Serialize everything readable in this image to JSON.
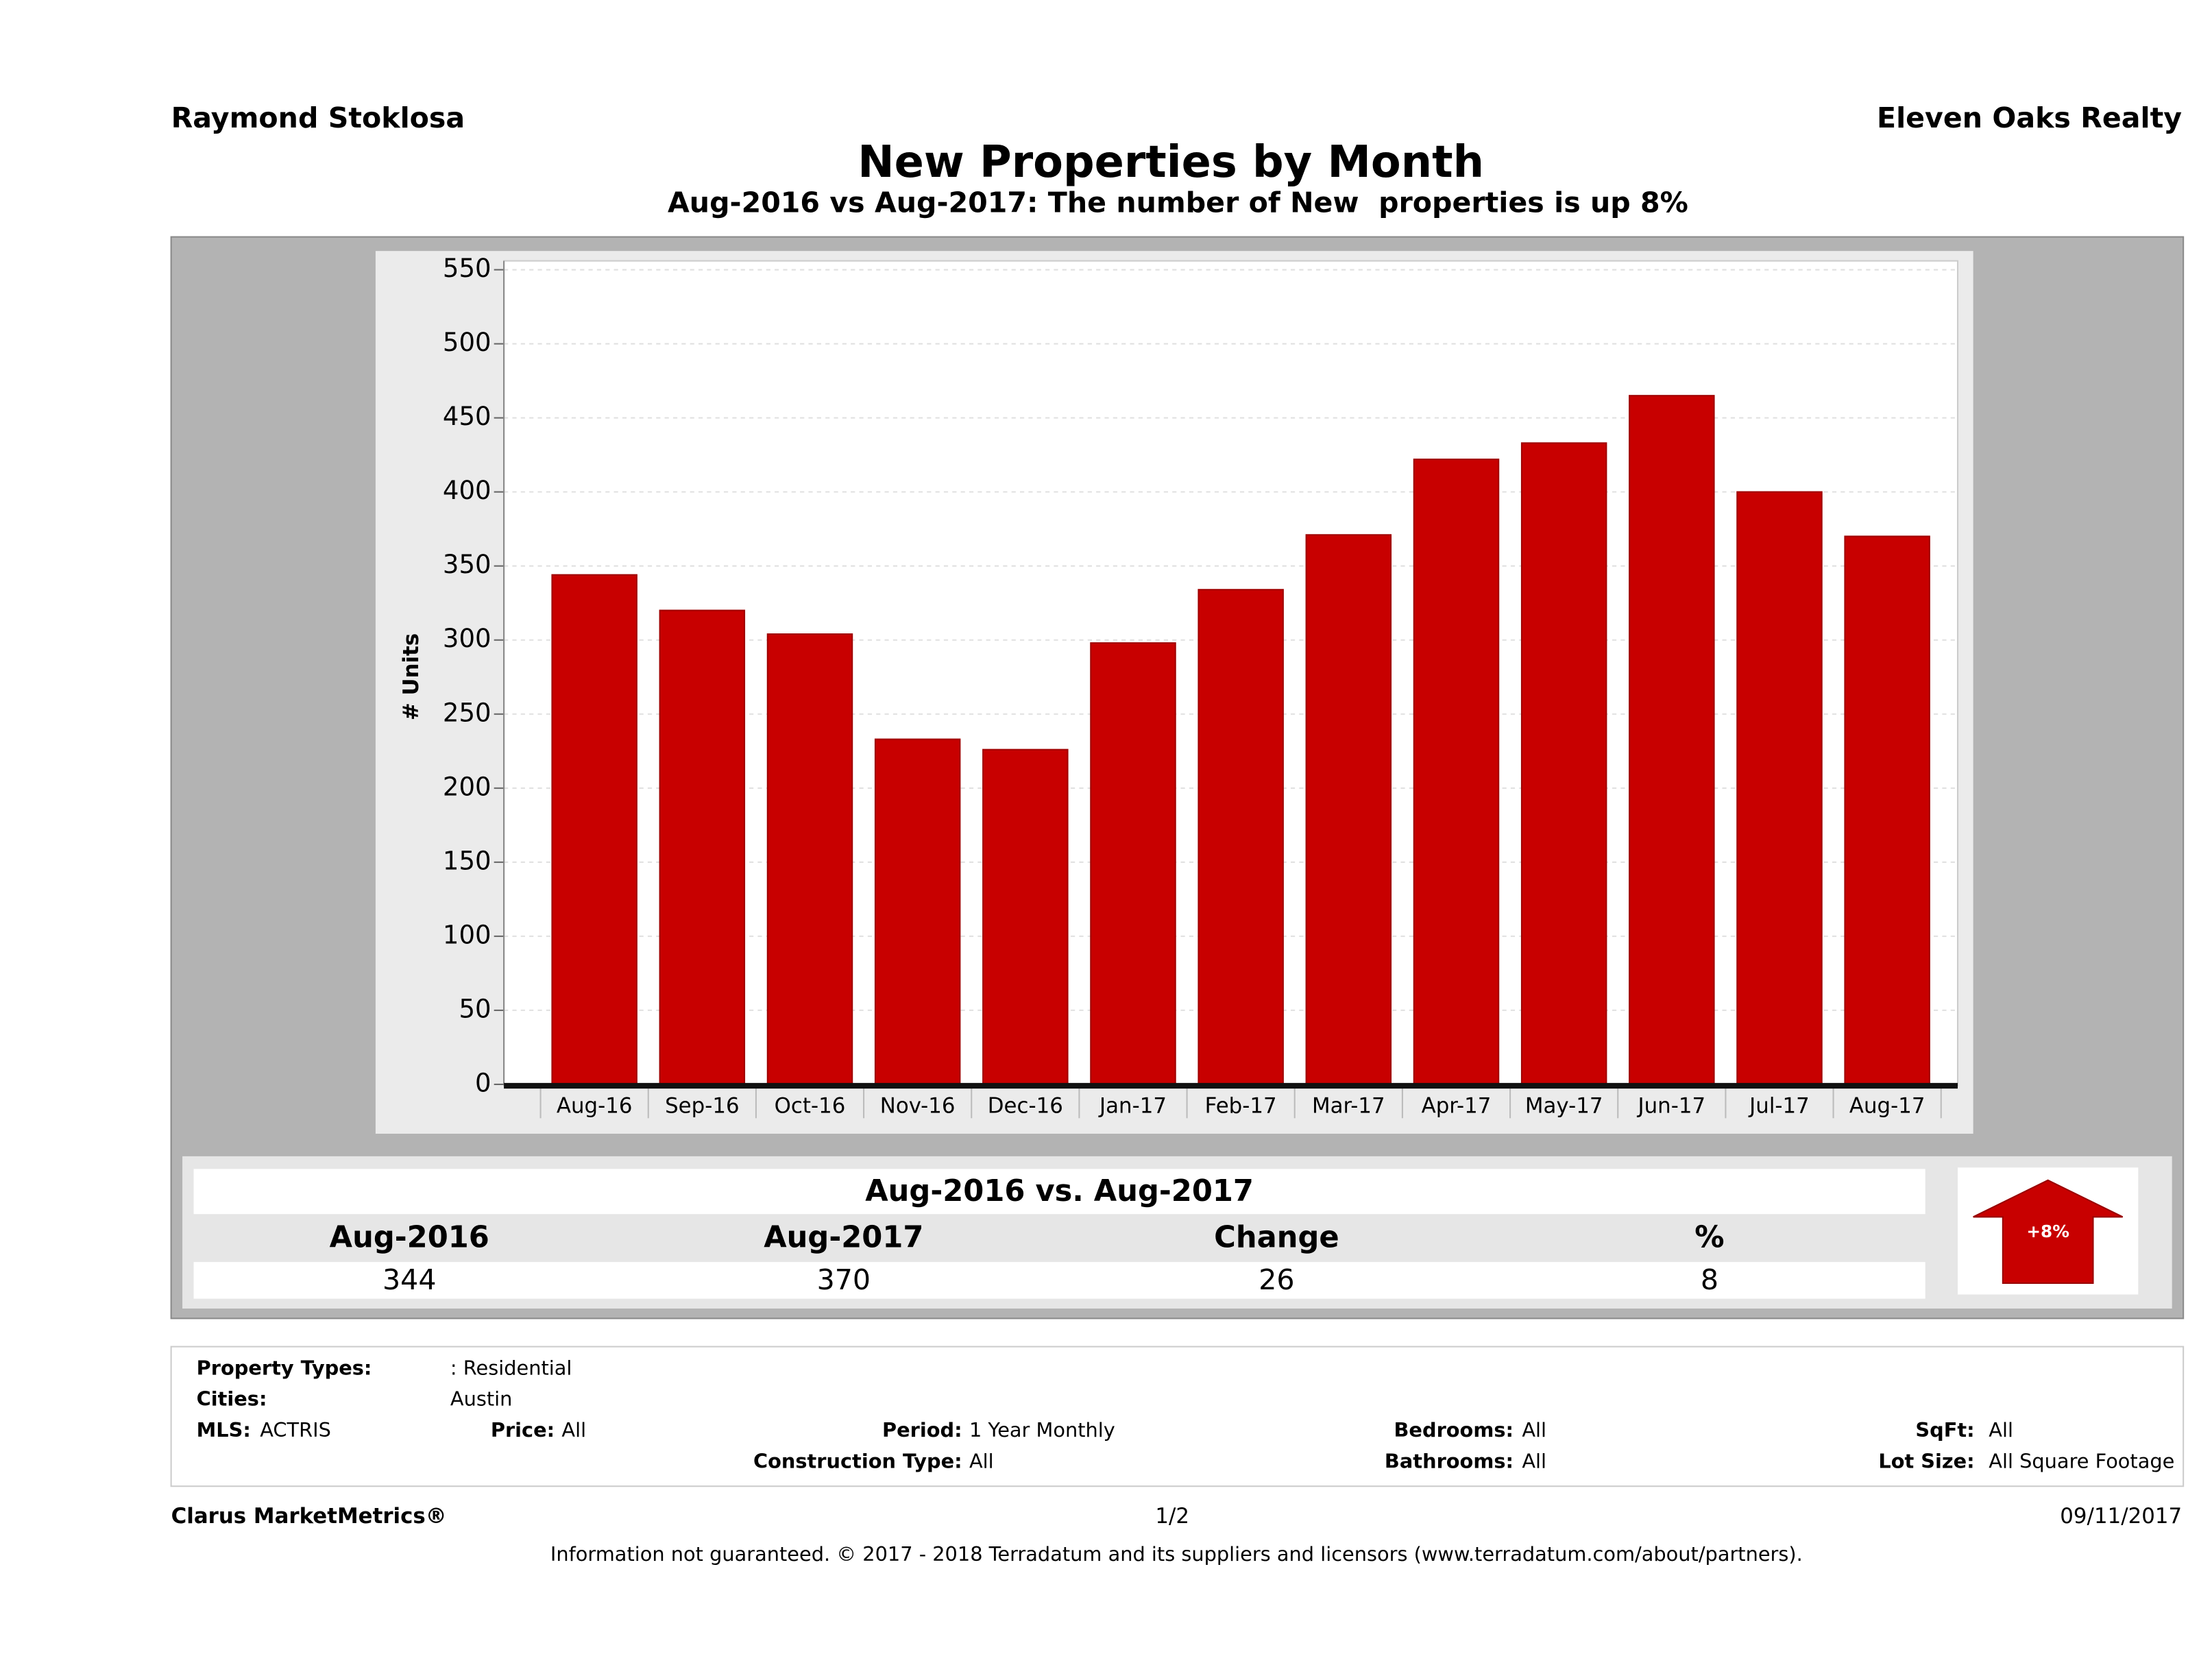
{
  "header": {
    "agent": "Raymond Stoklosa",
    "company": "Eleven Oaks Realty"
  },
  "chart_data": {
    "type": "bar",
    "title": "New Properties by Month",
    "subtitle": "Aug-2016 vs Aug-2017: The number of New  properties is up 8%",
    "y_label": "# Units",
    "categories": [
      "Aug-16",
      "Sep-16",
      "Oct-16",
      "Nov-16",
      "Dec-16",
      "Jan-17",
      "Feb-17",
      "Mar-17",
      "Apr-17",
      "May-17",
      "Jun-17",
      "Jul-17",
      "Aug-17"
    ],
    "values": [
      344,
      320,
      304,
      233,
      226,
      298,
      334,
      371,
      422,
      433,
      465,
      400,
      370
    ],
    "color": "#c80000",
    "ylim": [
      0,
      556
    ],
    "yticks": [
      0,
      50,
      100,
      150,
      200,
      250,
      300,
      350,
      400,
      450,
      500,
      550
    ],
    "grid": true
  },
  "comparison": {
    "title": "Aug-2016 vs. Aug-2017",
    "columns": [
      "Aug-2016",
      "Aug-2017",
      "Change",
      "%"
    ],
    "values": [
      344,
      370,
      26,
      8
    ],
    "badge": "+8%"
  },
  "filters": {
    "property_types_label": "Property Types:",
    "property_types": ": Residential",
    "cities_label": "Cities:",
    "cities": "Austin",
    "mls_label": "MLS:",
    "mls": "ACTRIS",
    "price_label": "Price:",
    "price": "All",
    "period_label": "Period:",
    "period": "1 Year Monthly",
    "bedrooms_label": "Bedrooms:",
    "bedrooms": "All",
    "sqft_label": "SqFt:",
    "sqft": "All",
    "construction_label": "Construction Type:",
    "construction": "All",
    "bathrooms_label": "Bathrooms:",
    "bathrooms": "All",
    "lot_size_label": "Lot Size:",
    "lot_size": "All Square Footage"
  },
  "footer": {
    "brand": "Clarus MarketMetrics®",
    "page": "1/2",
    "date": "09/11/2017",
    "disclaimer": "Information not guaranteed. © 2017 - 2018 Terradatum and its suppliers and licensors (www.terradatum.com/about/partners)."
  }
}
